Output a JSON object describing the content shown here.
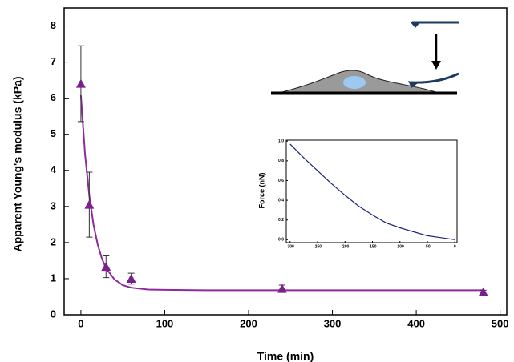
{
  "chart_data": [
    {
      "type": "scatter",
      "xlabel": "Time (min)",
      "ylabel": "Apparent Young's modulus (kPa)",
      "x": [
        0,
        10,
        30,
        60,
        240,
        480
      ],
      "values": [
        6.4,
        3.05,
        1.33,
        1.0,
        0.72,
        0.63
      ],
      "errors": [
        1.05,
        0.9,
        0.3,
        0.15,
        0.1,
        0.05
      ],
      "color": "#7b1f8c",
      "fit": {
        "x": [
          0,
          5,
          10,
          15,
          20,
          25,
          30,
          40,
          50,
          60,
          80,
          100,
          150,
          200,
          300,
          400,
          480
        ],
        "values": [
          6.08,
          4.44,
          3.3,
          2.5,
          1.95,
          1.56,
          1.29,
          0.98,
          0.82,
          0.75,
          0.7,
          0.69,
          0.68,
          0.68,
          0.68,
          0.68,
          0.68
        ],
        "color": "#8e2a9e"
      },
      "xlim": [
        -20,
        508
      ],
      "ylim": [
        0,
        8.5
      ],
      "xticks": [
        0,
        100,
        200,
        300,
        400,
        500
      ],
      "yticks": [
        0,
        1,
        2,
        3,
        4,
        5,
        6,
        7,
        8
      ]
    },
    {
      "type": "line",
      "ylabel": "Force (nN)",
      "x": [
        -300,
        -275,
        -250,
        -225,
        -200,
        -175,
        -150,
        -125,
        -100,
        -75,
        -50,
        -25,
        0
      ],
      "values": [
        0.97,
        0.83,
        0.7,
        0.57,
        0.45,
        0.34,
        0.25,
        0.17,
        0.12,
        0.08,
        0.04,
        0.02,
        0.0
      ],
      "color": "#1a237e",
      "xlim": [
        -307,
        4
      ],
      "ylim": [
        -0.03,
        1.01
      ],
      "xticks": [
        -300,
        -250,
        -200,
        -150,
        -100,
        -50,
        0
      ],
      "yticks": [
        {
          "value": 0,
          "label": "0.0"
        },
        {
          "value": 0.2,
          "label": "0.2"
        },
        {
          "value": 0.4,
          "label": "0.4"
        },
        {
          "value": 0.6,
          "label": "0.6"
        },
        {
          "value": 0.8,
          "label": "0.8"
        },
        {
          "value": 1.0,
          "label": "1.0"
        }
      ]
    }
  ]
}
